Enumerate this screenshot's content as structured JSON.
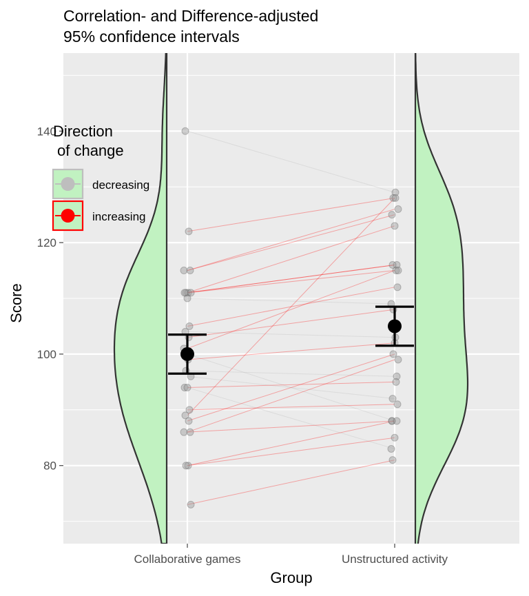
{
  "chart_data": {
    "type": "scatter",
    "title_lines": [
      "Correlation- and Difference-adjusted",
      "95% confidence intervals"
    ],
    "xlabel": "Group",
    "ylabel": "Score",
    "categories": [
      "Collaborative games",
      "Unstructured activity"
    ],
    "ylim": [
      66,
      154
    ],
    "yticks": [
      80,
      100,
      120,
      140
    ],
    "grid": true,
    "legend": {
      "title_lines": [
        "Direction",
        "of change"
      ],
      "placement": "top-left",
      "entries": [
        {
          "label": "decreasing",
          "color": "#bebebe"
        },
        {
          "label": "increasing",
          "color": "#ff0000"
        }
      ]
    },
    "colors": {
      "panel": "#ebebeb",
      "grid": "#ffffff",
      "violin_fill": "#c1f2c1",
      "violin_line": "#333333",
      "point": "#999999",
      "increasing": "#ff0000",
      "decreasing": "#bebebe",
      "summary": "#000000"
    },
    "pairs": [
      {
        "a": 140,
        "b": 129,
        "dir": "decreasing"
      },
      {
        "a": 122,
        "b": 128,
        "dir": "increasing"
      },
      {
        "a": 115,
        "b": 126,
        "dir": "increasing"
      },
      {
        "a": 115,
        "b": 125,
        "dir": "increasing"
      },
      {
        "a": 111,
        "b": 123,
        "dir": "increasing"
      },
      {
        "a": 111,
        "b": 116,
        "dir": "increasing"
      },
      {
        "a": 111,
        "b": 116,
        "dir": "increasing"
      },
      {
        "a": 111,
        "b": 115,
        "dir": "increasing"
      },
      {
        "a": 110,
        "b": 109,
        "dir": "decreasing"
      },
      {
        "a": 105,
        "b": 112,
        "dir": "increasing"
      },
      {
        "a": 104,
        "b": 103,
        "dir": "decreasing"
      },
      {
        "a": 103,
        "b": 108,
        "dir": "increasing"
      },
      {
        "a": 101,
        "b": 115,
        "dir": "increasing"
      },
      {
        "a": 100,
        "b": 88,
        "dir": "decreasing"
      },
      {
        "a": 99,
        "b": 102,
        "dir": "increasing"
      },
      {
        "a": 97,
        "b": 96,
        "dir": "decreasing"
      },
      {
        "a": 96,
        "b": 92,
        "dir": "decreasing"
      },
      {
        "a": 94,
        "b": 95,
        "dir": "increasing"
      },
      {
        "a": 94,
        "b": 83,
        "dir": "decreasing"
      },
      {
        "a": 90,
        "b": 91,
        "dir": "increasing"
      },
      {
        "a": 89,
        "b": 128,
        "dir": "increasing"
      },
      {
        "a": 88,
        "b": 100,
        "dir": "increasing"
      },
      {
        "a": 86,
        "b": 99,
        "dir": "increasing"
      },
      {
        "a": 86,
        "b": 88,
        "dir": "increasing"
      },
      {
        "a": 80,
        "b": 85,
        "dir": "increasing"
      },
      {
        "a": 80,
        "b": 88,
        "dir": "increasing"
      },
      {
        "a": 73,
        "b": 81,
        "dir": "increasing"
      }
    ],
    "summary": [
      {
        "group": "Collaborative games",
        "mean": 100,
        "lower": 96.5,
        "upper": 103.5
      },
      {
        "group": "Unstructured activity",
        "mean": 105,
        "lower": 101.5,
        "upper": 108.5
      }
    ]
  }
}
